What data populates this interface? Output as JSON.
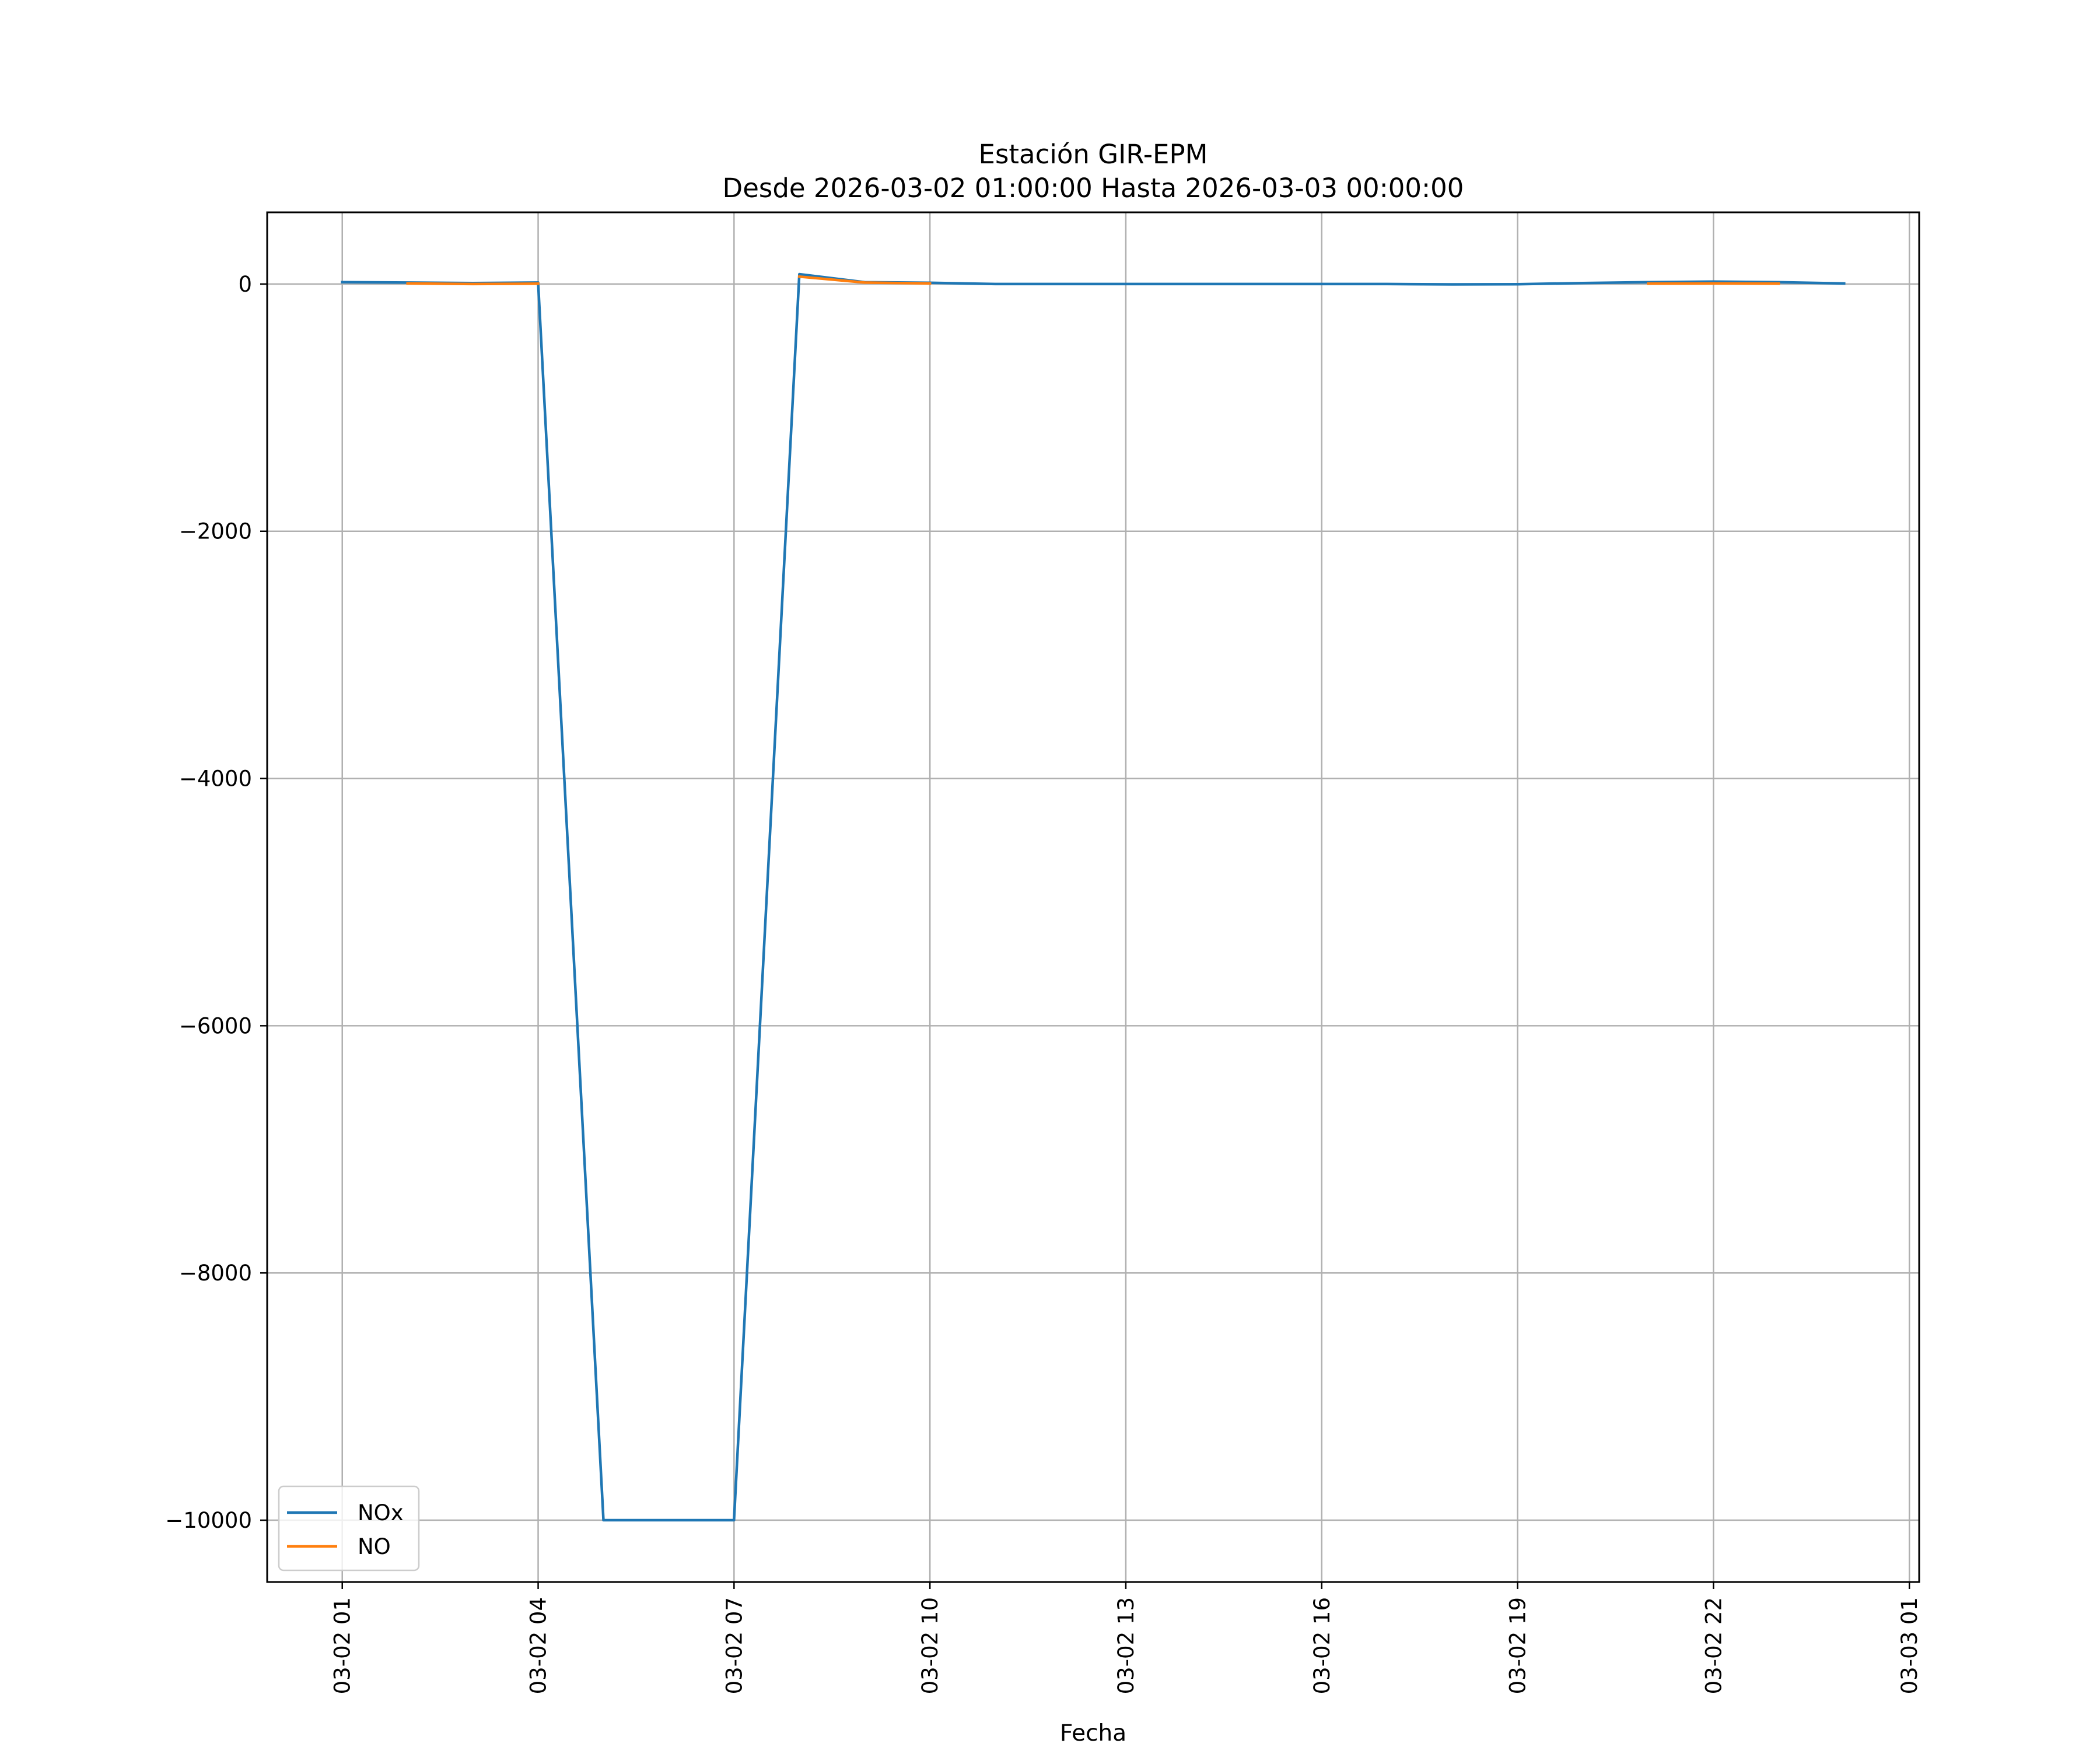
{
  "chart_data": {
    "type": "line",
    "title": "Estación GIR-EPM",
    "subtitle": "Desde 2026-03-02 01:00:00 Hasta 2026-03-03 00:00:00",
    "xlabel": "Fecha",
    "ylabel": "",
    "x": [
      "2026-03-02 01:00",
      "2026-03-02 02:00",
      "2026-03-02 03:00",
      "2026-03-02 04:00",
      "2026-03-02 05:00",
      "2026-03-02 06:00",
      "2026-03-02 07:00",
      "2026-03-02 08:00",
      "2026-03-02 09:00",
      "2026-03-02 10:00",
      "2026-03-02 11:00",
      "2026-03-02 12:00",
      "2026-03-02 13:00",
      "2026-03-02 14:00",
      "2026-03-02 15:00",
      "2026-03-02 16:00",
      "2026-03-02 17:00",
      "2026-03-02 18:00",
      "2026-03-02 19:00",
      "2026-03-02 20:00",
      "2026-03-02 21:00",
      "2026-03-02 22:00",
      "2026-03-02 23:00",
      "2026-03-03 00:00"
    ],
    "series": [
      {
        "name": "NOx",
        "color": "#1f77b4",
        "values": [
          15,
          12,
          8,
          12,
          -10000,
          -10000,
          -10000,
          80,
          15,
          10,
          0,
          0,
          0,
          0,
          0,
          0,
          0,
          -3,
          -2,
          8,
          15,
          20,
          15,
          5
        ]
      },
      {
        "name": "NO",
        "color": "#ff7f0e",
        "values": [
          null,
          5,
          0,
          3,
          null,
          null,
          null,
          60,
          12,
          5,
          null,
          null,
          null,
          null,
          null,
          null,
          null,
          null,
          null,
          null,
          3,
          5,
          3,
          null
        ]
      }
    ],
    "xlim": [
      "2026-03-01 23:51",
      "2026-03-03 01:09"
    ],
    "ylim": [
      -10500,
      580
    ],
    "xticks": [
      {
        "value": "2026-03-02 01:00",
        "label": "03-02 01"
      },
      {
        "value": "2026-03-02 04:00",
        "label": "03-02 04"
      },
      {
        "value": "2026-03-02 07:00",
        "label": "03-02 07"
      },
      {
        "value": "2026-03-02 10:00",
        "label": "03-02 10"
      },
      {
        "value": "2026-03-02 13:00",
        "label": "03-02 13"
      },
      {
        "value": "2026-03-02 16:00",
        "label": "03-02 16"
      },
      {
        "value": "2026-03-02 19:00",
        "label": "03-02 19"
      },
      {
        "value": "2026-03-02 22:00",
        "label": "03-02 22"
      },
      {
        "value": "2026-03-03 01:00",
        "label": "03-03 01"
      }
    ],
    "yticks": [
      {
        "value": 0,
        "label": "0"
      },
      {
        "value": -2000,
        "label": "−2000"
      },
      {
        "value": -4000,
        "label": "−4000"
      },
      {
        "value": -6000,
        "label": "−6000"
      },
      {
        "value": -8000,
        "label": "−8000"
      },
      {
        "value": -10000,
        "label": "−10000"
      }
    ],
    "grid": true,
    "legend": "lower-left",
    "grid_color": "#b0b0b0"
  }
}
